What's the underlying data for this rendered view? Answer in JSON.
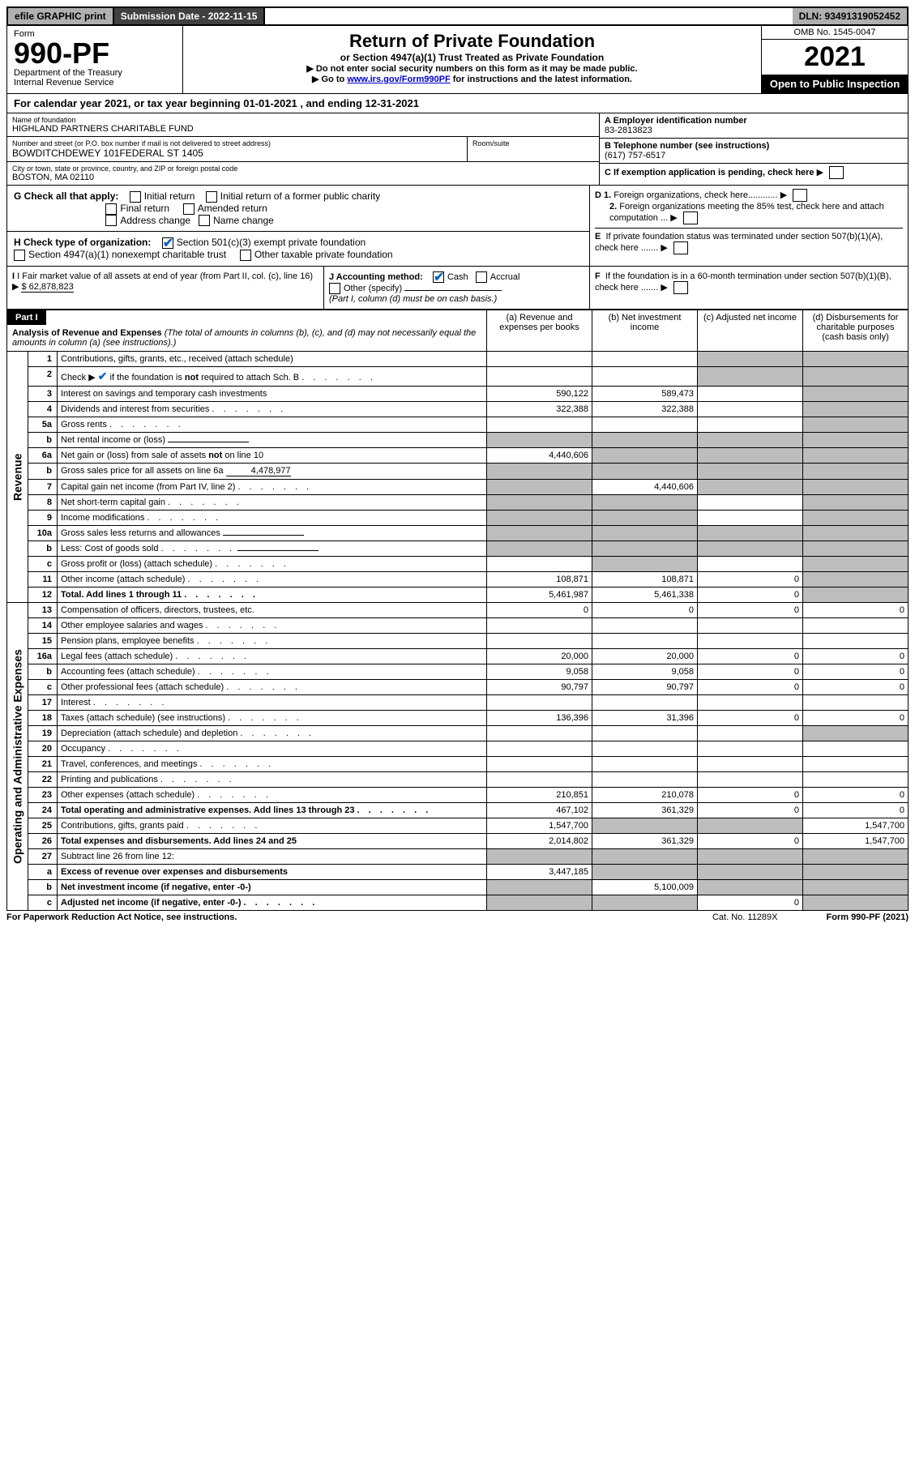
{
  "topbar": {
    "efile": "efile GRAPHIC print",
    "subdate_label": "Submission Date - 2022-11-15",
    "dln": "DLN: 93491319052452"
  },
  "header": {
    "form_word": "Form",
    "form_no": "990-PF",
    "dept": "Department of the Treasury",
    "irs": "Internal Revenue Service",
    "title": "Return of Private Foundation",
    "subtitle": "or Section 4947(a)(1) Trust Treated as Private Foundation",
    "instr1": "▶ Do not enter social security numbers on this form as it may be made public.",
    "instr2_pre": "▶ Go to ",
    "instr2_link": "www.irs.gov/Form990PF",
    "instr2_post": " for instructions and the latest information.",
    "omb": "OMB No. 1545-0047",
    "year": "2021",
    "open": "Open to Public Inspection"
  },
  "cal_year": "For calendar year 2021, or tax year beginning 01-01-2021              , and ending 12-31-2021",
  "entity": {
    "name_label": "Name of foundation",
    "name": "HIGHLAND PARTNERS CHARITABLE FUND",
    "addr_label": "Number and street (or P.O. box number if mail is not delivered to street address)",
    "addr": "BOWDITCHDEWEY 101FEDERAL ST 1405",
    "room_label": "Room/suite",
    "city_label": "City or town, state or province, country, and ZIP or foreign postal code",
    "city": "BOSTON, MA  02110",
    "ein_label": "A Employer identification number",
    "ein": "83-2813823",
    "tel_label": "B Telephone number (see instructions)",
    "tel": "(617) 757-6517",
    "c_label": "C If exemption application is pending, check here",
    "d1": "D 1. Foreign organizations, check here............",
    "d2": "2. Foreign organizations meeting the 85% test, check here and attach computation ...",
    "e": "E  If private foundation status was terminated under section 507(b)(1)(A), check here .......",
    "f": "F  If the foundation is in a 60-month termination under section 507(b)(1)(B), check here ......."
  },
  "g": {
    "label": "G Check all that apply:",
    "opts": [
      "Initial return",
      "Final return",
      "Address change",
      "Initial return of a former public charity",
      "Amended return",
      "Name change"
    ]
  },
  "h": {
    "label": "H Check type of organization:",
    "o1": "Section 501(c)(3) exempt private foundation",
    "o2": "Section 4947(a)(1) nonexempt charitable trust",
    "o3": "Other taxable private foundation"
  },
  "i": {
    "label": "I Fair market value of all assets at end of year (from Part II, col. (c), line 16)",
    "value": "$  62,878,823"
  },
  "j": {
    "label": "J Accounting method:",
    "cash": "Cash",
    "accrual": "Accrual",
    "other": "Other (specify)",
    "note": "(Part I, column (d) must be on cash basis.)"
  },
  "part1": {
    "label": "Part I",
    "title": "Analysis of Revenue and Expenses",
    "title_note": "(The total of amounts in columns (b), (c), and (d) may not necessarily equal the amounts in column (a) (see instructions).)",
    "cols": {
      "a": "(a)   Revenue and expenses per books",
      "b": "(b)   Net investment income",
      "c": "(c)   Adjusted net income",
      "d": "(d)   Disbursements for charitable purposes (cash basis only)"
    },
    "side_rev": "Revenue",
    "side_exp": "Operating and Administrative Expenses",
    "rows": [
      {
        "n": "1",
        "d": "Contributions, gifts, grants, etc., received (attach schedule)",
        "a": "",
        "b": "",
        "c_grey": true,
        "dd_grey": true
      },
      {
        "n": "2",
        "d": "Check ▶ ✔ if the foundation is not required to attach Sch. B",
        "dots": true,
        "a": "",
        "b": "",
        "c_grey": true,
        "dd_grey": true
      },
      {
        "n": "3",
        "d": "Interest on savings and temporary cash investments",
        "a": "590,122",
        "b": "589,473",
        "c": "",
        "dd_grey": true
      },
      {
        "n": "4",
        "d": "Dividends and interest from securities",
        "dots": true,
        "a": "322,388",
        "b": "322,388",
        "c": "",
        "dd_grey": true
      },
      {
        "n": "5a",
        "d": "Gross rents",
        "dots": true,
        "a": "",
        "b": "",
        "c": "",
        "dd_grey": true
      },
      {
        "n": "b",
        "d": "Net rental income or (loss)",
        "underline": true,
        "a_grey": true,
        "b_grey": true,
        "c_grey": true,
        "dd_grey": true
      },
      {
        "n": "6a",
        "d": "Net gain or (loss) from sale of assets not on line 10",
        "a": "4,440,606",
        "b_grey": true,
        "c_grey": true,
        "dd_grey": true
      },
      {
        "n": "b",
        "d": "Gross sales price for all assets on line 6a",
        "underline_val": "4,478,977",
        "a_grey": true,
        "b_grey": true,
        "c_grey": true,
        "dd_grey": true
      },
      {
        "n": "7",
        "d": "Capital gain net income (from Part IV, line 2)",
        "dots": true,
        "a_grey": true,
        "b": "4,440,606",
        "c_grey": true,
        "dd_grey": true
      },
      {
        "n": "8",
        "d": "Net short-term capital gain",
        "dots": true,
        "a_grey": true,
        "b_grey": true,
        "c": "",
        "dd_grey": true
      },
      {
        "n": "9",
        "d": "Income modifications",
        "dots": true,
        "a_grey": true,
        "b_grey": true,
        "c": "",
        "dd_grey": true
      },
      {
        "n": "10a",
        "d": "Gross sales less returns and allowances",
        "underline": true,
        "a_grey": true,
        "b_grey": true,
        "c_grey": true,
        "dd_grey": true
      },
      {
        "n": "b",
        "d": "Less: Cost of goods sold",
        "dots": true,
        "underline": true,
        "a_grey": true,
        "b_grey": true,
        "c_grey": true,
        "dd_grey": true
      },
      {
        "n": "c",
        "d": "Gross profit or (loss) (attach schedule)",
        "dots": true,
        "a": "",
        "b_grey": true,
        "c": "",
        "dd_grey": true
      },
      {
        "n": "11",
        "d": "Other income (attach schedule)",
        "dots": true,
        "a": "108,871",
        "b": "108,871",
        "c": "0",
        "dd_grey": true
      },
      {
        "n": "12",
        "d": "Total. Add lines 1 through 11",
        "dots": true,
        "bold": true,
        "a": "5,461,987",
        "b": "5,461,338",
        "c": "0",
        "dd_grey": true
      },
      {
        "n": "13",
        "d": "Compensation of officers, directors, trustees, etc.",
        "a": "0",
        "b": "0",
        "c": "0",
        "dd": "0"
      },
      {
        "n": "14",
        "d": "Other employee salaries and wages",
        "dots": true,
        "a": "",
        "b": "",
        "c": "",
        "dd": ""
      },
      {
        "n": "15",
        "d": "Pension plans, employee benefits",
        "dots": true,
        "a": "",
        "b": "",
        "c": "",
        "dd": ""
      },
      {
        "n": "16a",
        "d": "Legal fees (attach schedule)",
        "dots": true,
        "a": "20,000",
        "b": "20,000",
        "c": "0",
        "dd": "0"
      },
      {
        "n": "b",
        "d": "Accounting fees (attach schedule)",
        "dots": true,
        "a": "9,058",
        "b": "9,058",
        "c": "0",
        "dd": "0"
      },
      {
        "n": "c",
        "d": "Other professional fees (attach schedule)",
        "dots": true,
        "a": "90,797",
        "b": "90,797",
        "c": "0",
        "dd": "0"
      },
      {
        "n": "17",
        "d": "Interest",
        "dots": true,
        "a": "",
        "b": "",
        "c": "",
        "dd": ""
      },
      {
        "n": "18",
        "d": "Taxes (attach schedule) (see instructions)",
        "dots": true,
        "a": "136,396",
        "b": "31,396",
        "c": "0",
        "dd": "0"
      },
      {
        "n": "19",
        "d": "Depreciation (attach schedule) and depletion",
        "dots": true,
        "a": "",
        "b": "",
        "c": "",
        "dd_grey": true
      },
      {
        "n": "20",
        "d": "Occupancy",
        "dots": true,
        "a": "",
        "b": "",
        "c": "",
        "dd": ""
      },
      {
        "n": "21",
        "d": "Travel, conferences, and meetings",
        "dots": true,
        "a": "",
        "b": "",
        "c": "",
        "dd": ""
      },
      {
        "n": "22",
        "d": "Printing and publications",
        "dots": true,
        "a": "",
        "b": "",
        "c": "",
        "dd": ""
      },
      {
        "n": "23",
        "d": "Other expenses (attach schedule)",
        "dots": true,
        "a": "210,851",
        "b": "210,078",
        "c": "0",
        "dd": "0"
      },
      {
        "n": "24",
        "d": "Total operating and administrative expenses. Add lines 13 through 23",
        "dots": true,
        "bold": true,
        "a": "467,102",
        "b": "361,329",
        "c": "0",
        "dd": "0"
      },
      {
        "n": "25",
        "d": "Contributions, gifts, grants paid",
        "dots": true,
        "a": "1,547,700",
        "b_grey": true,
        "c_grey": true,
        "dd": "1,547,700"
      },
      {
        "n": "26",
        "d": "Total expenses and disbursements. Add lines 24 and 25",
        "bold": true,
        "a": "2,014,802",
        "b": "361,329",
        "c": "0",
        "dd": "1,547,700"
      },
      {
        "n": "27",
        "d": "Subtract line 26 from line 12:",
        "a_grey": true,
        "b_grey": true,
        "c_grey": true,
        "dd_grey": true
      },
      {
        "n": "a",
        "d": "Excess of revenue over expenses and disbursements",
        "bold": true,
        "a": "3,447,185",
        "b_grey": true,
        "c_grey": true,
        "dd_grey": true
      },
      {
        "n": "b",
        "d": "Net investment income (if negative, enter -0-)",
        "bold": true,
        "a_grey": true,
        "b": "5,100,009",
        "c_grey": true,
        "dd_grey": true
      },
      {
        "n": "c",
        "d": "Adjusted net income (if negative, enter -0-)",
        "dots": true,
        "bold": true,
        "a_grey": true,
        "b_grey": true,
        "c": "0",
        "dd_grey": true
      }
    ]
  },
  "footer": {
    "left": "For Paperwork Reduction Act Notice, see instructions.",
    "mid": "Cat. No. 11289X",
    "right": "Form 990-PF (2021)"
  }
}
